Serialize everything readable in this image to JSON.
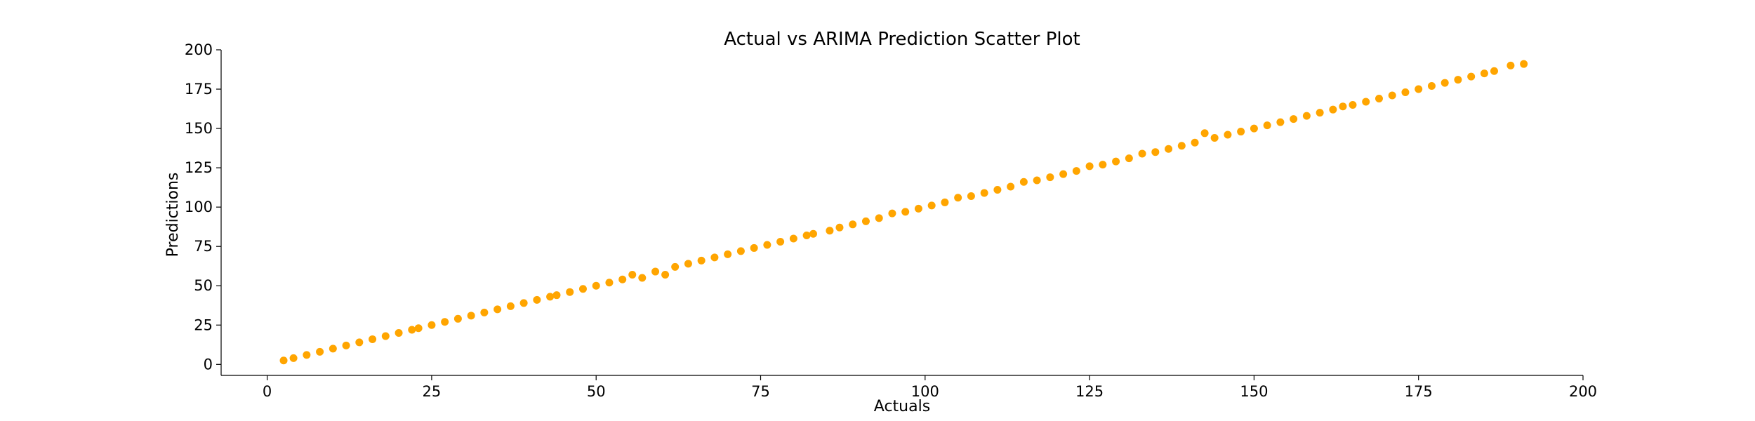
{
  "chart_data": {
    "type": "scatter",
    "title": "Actual vs ARIMA Prediction Scatter Plot",
    "xlabel": "Actuals",
    "ylabel": "Predictions",
    "xlim": [
      -7,
      200
    ],
    "ylim": [
      -7,
      200
    ],
    "x_ticks": [
      0,
      25,
      50,
      75,
      100,
      125,
      150,
      175,
      200
    ],
    "y_ticks": [
      0,
      25,
      50,
      75,
      100,
      125,
      150,
      175,
      200
    ],
    "x_tick_labels": [
      "0",
      "25",
      "50",
      "75",
      "100",
      "125",
      "150",
      "175",
      "200"
    ],
    "y_tick_labels": [
      "0",
      "25",
      "50",
      "75",
      "100",
      "125",
      "150",
      "175",
      "200"
    ],
    "grid": false,
    "spines": [
      "left",
      "bottom"
    ],
    "marker_color": "#FFA500",
    "series": [
      {
        "x": [
          2.5,
          4,
          6,
          8,
          10,
          12,
          14,
          16,
          18,
          20,
          22,
          23,
          25,
          27,
          29,
          31,
          33,
          35,
          37,
          39,
          41,
          43,
          44,
          46,
          48,
          50,
          52,
          54,
          55.5,
          57,
          59,
          60.5,
          62,
          64,
          66,
          68,
          70,
          72,
          74,
          76,
          78,
          80,
          82,
          83,
          85.5,
          87,
          89,
          91,
          93,
          95,
          97,
          99,
          101,
          103,
          105,
          107,
          109,
          111,
          113,
          115,
          117,
          119,
          121,
          123,
          125,
          127,
          129,
          131,
          133,
          135,
          137,
          139,
          141,
          142.5,
          144,
          146,
          148,
          150,
          152,
          154,
          156,
          158,
          160,
          162,
          163.5,
          165,
          167,
          169,
          171,
          173,
          175,
          177,
          179,
          181,
          183,
          185,
          186.5,
          189,
          191
        ],
        "y": [
          2.5,
          4,
          6,
          8,
          10,
          12,
          14,
          16,
          18,
          20,
          22,
          23,
          25,
          27,
          29,
          31,
          33,
          35,
          37,
          39,
          41,
          43,
          44,
          46,
          48,
          50,
          52,
          54,
          57,
          55,
          59,
          57,
          62,
          64,
          66,
          68,
          70,
          72,
          74,
          76,
          78,
          80,
          82,
          83,
          85,
          87,
          89,
          91,
          93,
          96,
          97,
          99,
          101,
          103,
          106,
          107,
          109,
          111,
          113,
          116,
          117,
          119,
          121,
          123,
          126,
          127,
          129,
          131,
          134,
          135,
          137,
          139,
          141,
          147,
          144,
          146,
          148,
          150,
          152,
          154,
          156,
          158,
          160,
          162,
          164,
          165,
          167,
          169,
          171,
          173,
          175,
          177,
          179,
          181,
          183,
          185,
          186.5,
          190,
          191
        ]
      }
    ]
  }
}
